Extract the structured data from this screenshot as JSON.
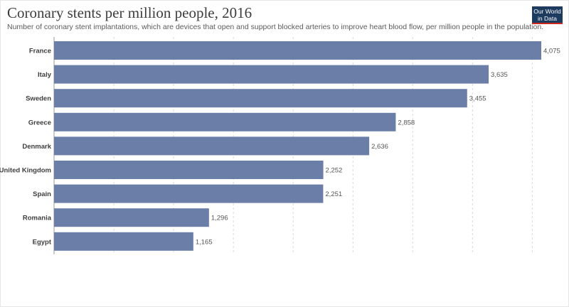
{
  "header": {
    "title": "Coronary stents per million people, 2016",
    "subtitle": "Number of coronary stent implantations, which are devices that open and support blocked arteries to improve heart blood flow, per million people in the population."
  },
  "logo": {
    "line1": "Our World",
    "line2": "in Data"
  },
  "colors": {
    "bar": "#6a7ea8",
    "grid": "#d9d9d9",
    "axis": "#999999"
  },
  "chart_data": {
    "type": "bar",
    "orientation": "horizontal",
    "title": "Coronary stents per million people, 2016",
    "categories": [
      "France",
      "Italy",
      "Sweden",
      "Greece",
      "Denmark",
      "United Kingdom",
      "Spain",
      "Romania",
      "Egypt"
    ],
    "values": [
      4075,
      3635,
      3455,
      2858,
      2636,
      2252,
      2251,
      1296,
      1165
    ],
    "value_labels": [
      "4,075",
      "3,635",
      "3,455",
      "2,858",
      "2,636",
      "2,252",
      "2,251",
      "1,296",
      "1,165"
    ],
    "xlim": [
      0,
      4200
    ],
    "grid_step": 500,
    "xlabel": "",
    "ylabel": ""
  }
}
